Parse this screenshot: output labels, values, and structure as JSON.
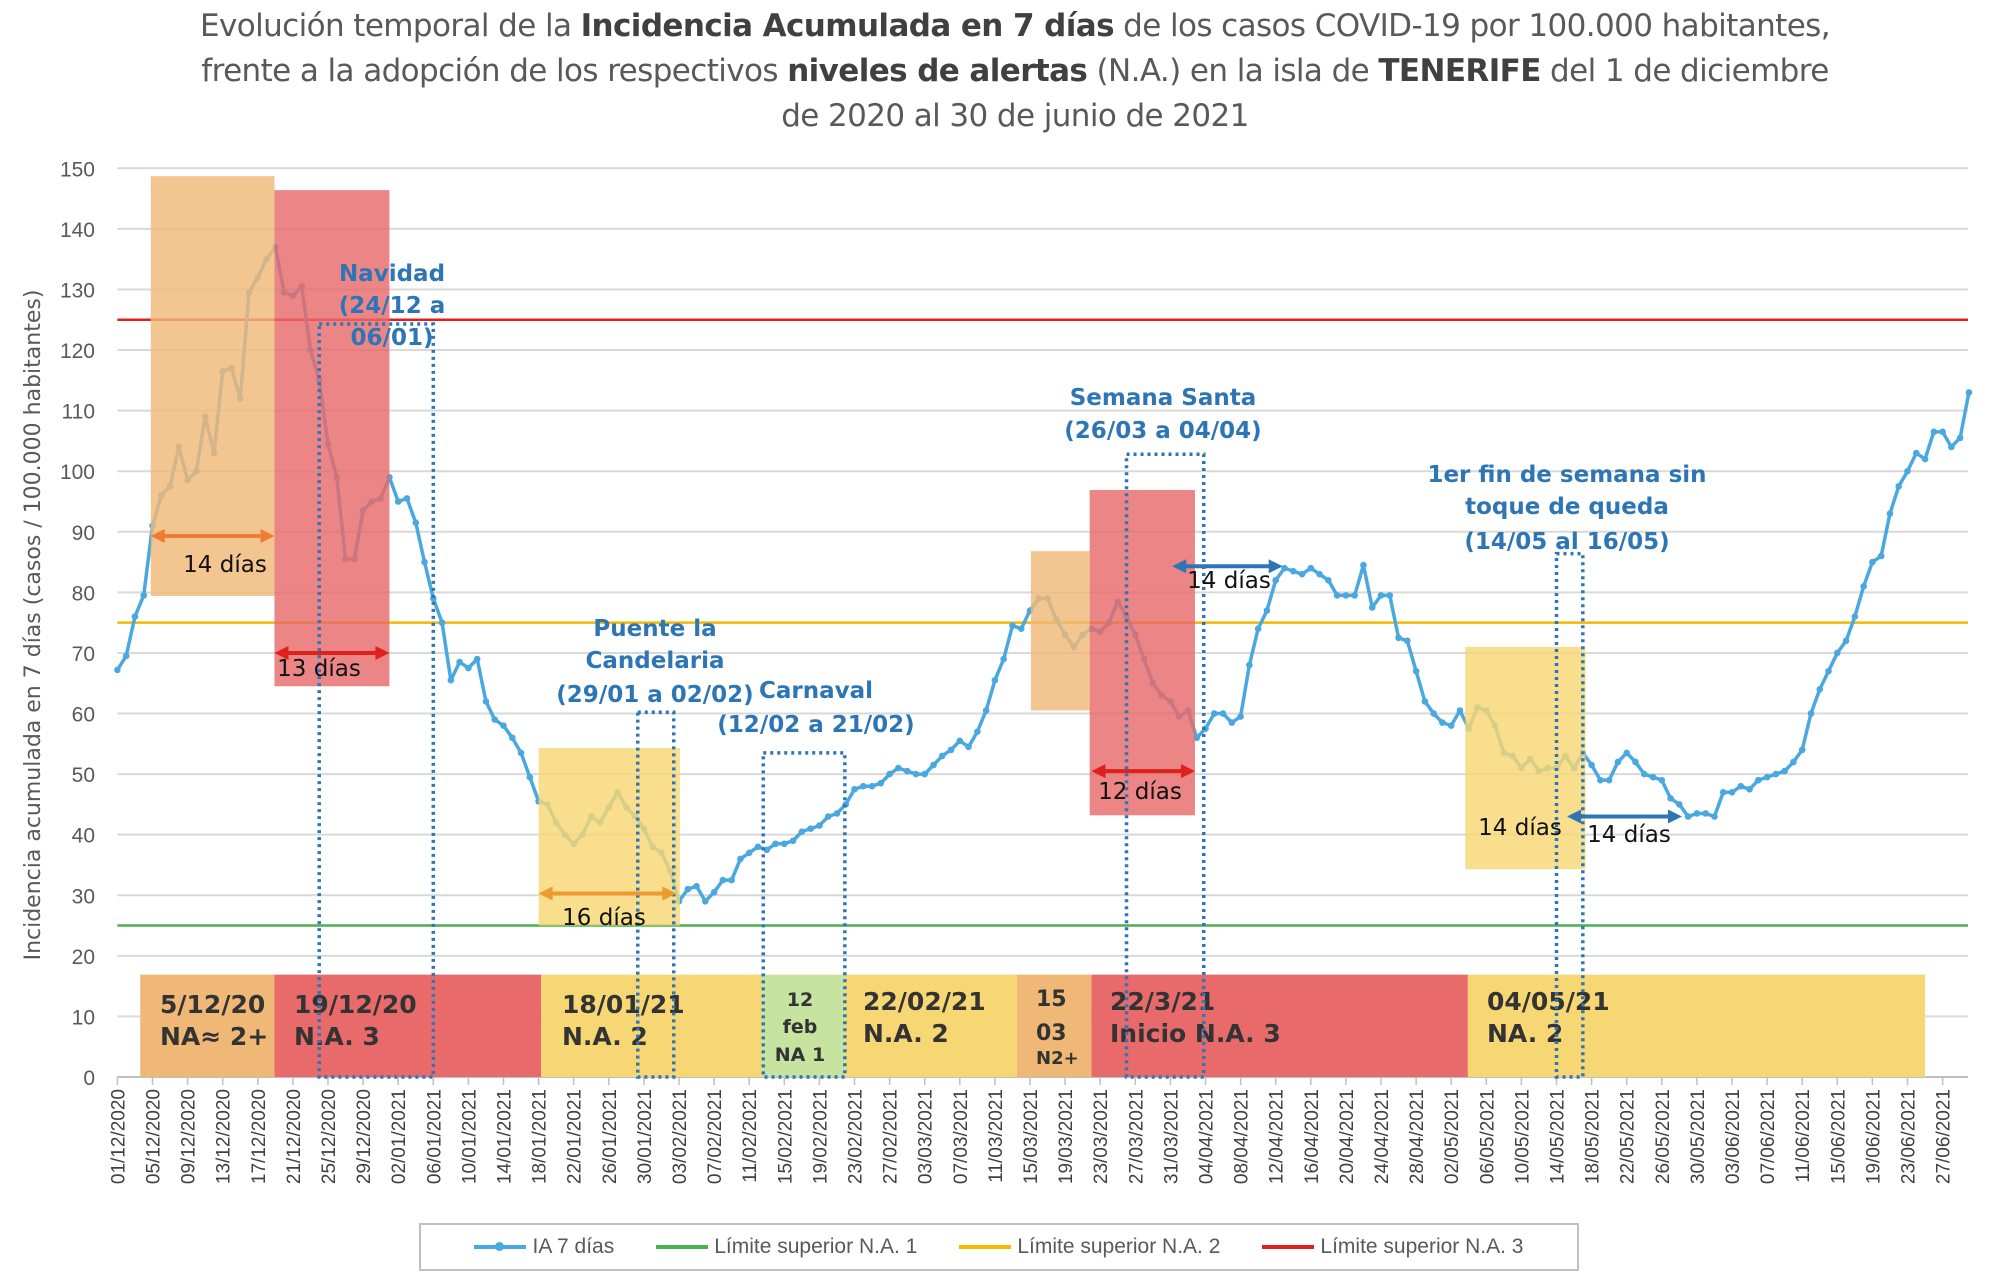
{
  "title": {
    "line1": [
      {
        "t": "Evolución temporal de la ",
        "b": false
      },
      {
        "t": "Incidencia Acumulada en 7 días",
        "b": true
      },
      {
        "t": " de los casos COVID-19 por 100.000 habitantes,",
        "b": false
      }
    ],
    "line2": [
      {
        "t": "frente a la adopción de los respectivos ",
        "b": false
      },
      {
        "t": "niveles de alertas",
        "b": true
      },
      {
        "t": " (N.A.) en la isla de ",
        "b": false
      },
      {
        "t": "TENERIFE",
        "b": true
      },
      {
        "t": " del 1 de diciembre",
        "b": false
      }
    ],
    "line3": [
      {
        "t": "de 2020 al 30 de junio de 2021",
        "b": false
      }
    ]
  },
  "chart_data": {
    "type": "line",
    "title": "Evolución temporal de la Incidencia Acumulada en 7 días de los casos COVID-19 por 100.000 habitantes, frente a la adopción de los respectivos niveles de alertas (N.A.) en la isla de TENERIFE del 1 de diciembre de 2020 al 30 de junio de 2021",
    "ylabel": "Incidencia acumulada en 7 días (casos / 100.000 habitantes)",
    "xlabel": "",
    "ylim": [
      0,
      150
    ],
    "yticks": [
      0,
      10,
      20,
      30,
      40,
      50,
      60,
      70,
      80,
      90,
      100,
      110,
      120,
      130,
      140,
      150
    ],
    "grid": true,
    "legend_position": "bottom",
    "x_tick_labels": [
      "01/12/2020",
      "05/12/2020",
      "09/12/2020",
      "13/12/2020",
      "17/12/2020",
      "21/12/2020",
      "25/12/2020",
      "29/12/2020",
      "02/01/2021",
      "06/01/2021",
      "10/01/2021",
      "14/01/2021",
      "18/01/2021",
      "22/01/2021",
      "26/01/2021",
      "30/01/2021",
      "03/02/2021",
      "07/02/2021",
      "11/02/2021",
      "15/02/2021",
      "19/02/2021",
      "23/02/2021",
      "27/02/2021",
      "03/03/2021",
      "07/03/2021",
      "11/03/2021",
      "15/03/2021",
      "19/03/2021",
      "23/03/2021",
      "27/03/2021",
      "31/03/2021",
      "04/04/2021",
      "08/04/2021",
      "12/04/2021",
      "16/04/2021",
      "20/04/2021",
      "24/04/2021",
      "28/04/2021",
      "02/05/2021",
      "06/05/2021",
      "10/05/2021",
      "14/05/2021",
      "18/05/2021",
      "22/05/2021",
      "26/05/2021",
      "30/05/2021",
      "03/06/2021",
      "07/06/2021",
      "11/06/2021",
      "15/06/2021",
      "19/06/2021",
      "23/06/2021",
      "27/06/2021"
    ],
    "series": [
      {
        "name": "IA 7 días",
        "color": "#4aa8e0",
        "values": [
          67.2,
          69.5,
          76,
          79.5,
          91,
          96,
          97.5,
          104,
          98.5,
          100,
          109,
          103,
          116.5,
          117,
          112,
          129.5,
          132,
          135,
          137,
          129.5,
          129,
          130.5,
          120,
          115,
          104.5,
          99,
          85.5,
          85.5,
          93.5,
          95,
          95.5,
          99,
          95,
          95.5,
          91.5,
          85,
          79,
          75,
          65.5,
          68.5,
          67.5,
          69,
          62,
          59,
          58,
          56,
          53.5,
          49.5,
          45.5,
          45,
          42,
          40,
          38.5,
          40,
          43,
          42,
          44.5,
          47,
          44.5,
          43,
          41,
          38,
          37,
          34,
          29,
          31,
          31.5,
          29,
          30.5,
          32.5,
          32.5,
          36,
          37,
          38,
          37.5,
          38.5,
          38.5,
          39,
          40.5,
          41,
          41.5,
          43,
          43.5,
          45,
          47.5,
          48,
          48,
          48.5,
          50,
          51,
          50.5,
          50,
          50,
          51.5,
          53,
          54,
          55.5,
          54.5,
          57,
          60.5,
          65.5,
          69,
          74.5,
          74,
          77,
          79,
          79,
          75.5,
          73,
          71,
          73,
          74,
          73.5,
          75,
          78.5,
          76,
          73,
          69,
          65,
          63,
          62,
          59.5,
          60.5,
          56,
          57.5,
          60,
          60,
          58.5,
          59.5,
          68,
          74,
          77,
          82,
          84,
          83.5,
          83,
          84,
          83,
          82,
          79.5,
          79.5,
          79.5,
          84.5,
          77.5,
          79.5,
          79.5,
          72.5,
          72,
          67,
          62,
          60,
          58.5,
          58,
          60.5,
          57.5,
          61,
          60.5,
          58,
          53.5,
          53,
          51,
          52.5,
          50.5,
          51,
          51,
          53,
          51,
          53.5,
          51.5,
          49,
          49,
          52,
          53.5,
          52,
          50,
          49.5,
          49,
          46,
          45,
          43,
          43.5,
          43.5,
          43,
          47,
          47,
          48,
          47.5,
          49,
          49.5,
          50,
          50.5,
          52,
          54,
          60,
          64,
          67,
          70,
          72,
          76,
          81,
          85,
          86,
          93,
          97.5,
          100,
          103,
          102,
          106.5,
          106.5,
          104,
          105.5,
          113
        ]
      },
      {
        "name": "Límite superior N.A. 1",
        "color": "#4caf50",
        "values": [
          25
        ]
      },
      {
        "name": "Límite superior N.A. 2",
        "color": "#f5b800",
        "values": [
          75
        ]
      },
      {
        "name": "Límite superior N.A. 3",
        "color": "#e0201b",
        "values": [
          125
        ]
      }
    ],
    "shaded_periods": [
      {
        "color": "#f0b877",
        "from_day": 3.8,
        "to_day": 17.9,
        "y_from": 79.4,
        "y_to": 148.7
      },
      {
        "color": "#e86a6a",
        "from_day": 17.9,
        "to_day": 31,
        "y_from": 64.5,
        "y_to": 146.4
      },
      {
        "color": "#f7d774",
        "from_day": 48,
        "to_day": 64.1,
        "y_from": 25,
        "y_to": 54.3
      },
      {
        "color": "#f0b877",
        "from_day": 104.1,
        "to_day": 110.8,
        "y_from": 60.5,
        "y_to": 86.8
      },
      {
        "color": "#e86a6a",
        "from_day": 110.8,
        "to_day": 122.8,
        "y_from": 43.2,
        "y_to": 96.9
      },
      {
        "color": "#f7d774",
        "from_day": 153.6,
        "to_day": 167.3,
        "y_from": 34.3,
        "y_to": 71
      }
    ],
    "event_windows": [
      {
        "lines": [
          "Navidad",
          "(24/12 a",
          "06/01)"
        ],
        "from_day": 23,
        "to_day": 36,
        "top": 124.3
      },
      {
        "lines": [
          "Puente la",
          "Candelaria",
          "(29/01 a 02/02)"
        ],
        "from_day": 59.3,
        "to_day": 63.4,
        "top": 60.2
      },
      {
        "lines": [
          "Carnaval",
          "(12/02 a 21/02)"
        ],
        "from_day": 73.6,
        "to_day": 82.9,
        "top": 53.5
      },
      {
        "lines": [
          "Semana Santa",
          "(26/03 a 04/04)"
        ],
        "from_day": 115,
        "to_day": 123.8,
        "top": 102.8
      },
      {
        "lines": [
          "1er fin de semana sin",
          "toque de queda",
          "(14/05 al 16/05)"
        ],
        "from_day": 164,
        "to_day": 167,
        "top": 86.4
      }
    ],
    "interval_arrows": [
      {
        "label": "14 días",
        "color": "#ed7d31",
        "from_day": 3.8,
        "to_day": 17.9,
        "y": 89.3
      },
      {
        "label": "13 días",
        "color": "#e0201b",
        "from_day": 17.9,
        "to_day": 31,
        "y": 70
      },
      {
        "label": "16 días",
        "color": "#ed9a31",
        "from_day": 48,
        "to_day": 63.7,
        "y": 30.3
      },
      {
        "label": "12 días",
        "color": "#e0201b",
        "from_day": 111,
        "to_day": 122.8,
        "y": 50.5
      },
      {
        "label": "14 días",
        "color": "#2e75b6",
        "from_day": 120.2,
        "to_day": 132.8,
        "y": 84.3
      },
      {
        "label": "14 días",
        "color": "#2e75b6",
        "from_day": 165.2,
        "to_day": 178.3,
        "y": 43
      }
    ],
    "extra_labels": [
      {
        "label": "14 días"
      }
    ],
    "alert_levels": [
      {
        "lines": [
          "5/12/20",
          "NA≈ 2+"
        ],
        "color": "#f0b877",
        "from_day": 2.6,
        "to_day": 17.9
      },
      {
        "lines": [
          "19/12/20",
          "N.A. 3"
        ],
        "color": "#e86a6a",
        "from_day": 17.9,
        "to_day": 48.3
      },
      {
        "lines": [
          "18/01/21",
          "N.A. 2"
        ],
        "color": "#f7d774",
        "from_day": 48.3,
        "to_day": 73.4
      },
      {
        "lines": [
          "12",
          "feb",
          "NA 1"
        ],
        "color": "#c6e3a0",
        "from_day": 73.4,
        "to_day": 82.9
      },
      {
        "lines": [
          "22/02/21",
          "N.A. 2"
        ],
        "color": "#f7d774",
        "from_day": 82.9,
        "to_day": 102.5
      },
      {
        "lines": [
          "15",
          "03",
          "N2+"
        ],
        "color": "#f0b877",
        "from_day": 102.5,
        "to_day": 111
      },
      {
        "lines": [
          "22/3/21",
          "Inicio N.A. 3"
        ],
        "color": "#e86a6a",
        "from_day": 111,
        "to_day": 153.9
      },
      {
        "lines": [
          "04/05/21",
          "NA. 2"
        ],
        "color": "#f7d774",
        "from_day": 153.9,
        "to_day": 206
      },
      {
        "top_value": 16.9
      }
    ]
  }
}
